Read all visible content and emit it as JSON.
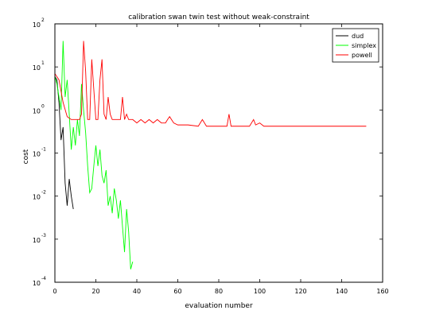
{
  "chart_data": {
    "type": "line",
    "title": "calibration swan twin test without weak-constraint",
    "xlabel": "evaluation number",
    "ylabel": "cost",
    "xlim": [
      0,
      160
    ],
    "ylim": [
      0.0001,
      100
    ],
    "yscale": "log",
    "grid": false,
    "legend_position": "top-right",
    "x_ticks": [
      0,
      20,
      40,
      60,
      80,
      100,
      120,
      140,
      160
    ],
    "x_tick_labels": [
      "0",
      "20",
      "40",
      "60",
      "80",
      "100",
      "120",
      "140",
      "160"
    ],
    "y_ticks": [
      {
        "value": 0.0001,
        "base": "10",
        "exp": "-4"
      },
      {
        "value": 0.001,
        "base": "10",
        "exp": "-3"
      },
      {
        "value": 0.01,
        "base": "10",
        "exp": "-2"
      },
      {
        "value": 0.1,
        "base": "10",
        "exp": "-1"
      },
      {
        "value": 1,
        "base": "10",
        "exp": "0"
      },
      {
        "value": 10,
        "base": "10",
        "exp": "1"
      },
      {
        "value": 100,
        "base": "10",
        "exp": "2"
      }
    ],
    "series": [
      {
        "name": "dud",
        "color": "#000000",
        "x": [
          0,
          1,
          2,
          3,
          4,
          5,
          6,
          7,
          8,
          9
        ],
        "y": [
          6,
          5,
          1.5,
          0.2,
          0.4,
          0.02,
          0.006,
          0.025,
          0.01,
          0.005
        ]
      },
      {
        "name": "simplex",
        "color": "#00ff00",
        "x": [
          0,
          1,
          2,
          3,
          4,
          5,
          6,
          7,
          8,
          9,
          10,
          11,
          12,
          13,
          14,
          15,
          16,
          17,
          18,
          19,
          20,
          21,
          22,
          23,
          24,
          25,
          26,
          27,
          28,
          29,
          30,
          31,
          32,
          33,
          34,
          35,
          36,
          37,
          38
        ],
        "y": [
          6,
          4,
          2,
          1,
          40,
          2,
          5,
          0.8,
          0.12,
          0.4,
          0.15,
          0.6,
          0.25,
          4,
          1,
          0.3,
          0.05,
          0.012,
          0.015,
          0.05,
          0.15,
          0.05,
          0.12,
          0.03,
          0.02,
          0.04,
          0.006,
          0.01,
          0.004,
          0.015,
          0.008,
          0.003,
          0.008,
          0.002,
          0.0005,
          0.005,
          0.0015,
          0.0002,
          0.0003
        ]
      },
      {
        "name": "powell",
        "color": "#ff0000",
        "x": [
          0,
          2,
          4,
          6,
          8,
          10,
          12,
          13,
          14,
          15,
          16,
          17,
          18,
          19,
          20,
          21,
          22,
          23,
          24,
          25,
          26,
          27,
          28,
          29,
          30,
          31,
          32,
          33,
          34,
          35,
          36,
          38,
          40,
          42,
          44,
          46,
          48,
          50,
          52,
          54,
          55,
          56,
          58,
          60,
          65,
          70,
          72,
          74,
          80,
          84,
          85,
          86,
          90,
          95,
          97,
          98,
          100,
          102,
          110,
          120,
          130,
          140,
          152
        ],
        "y": [
          7,
          5,
          1.5,
          0.7,
          0.6,
          0.6,
          0.6,
          0.8,
          40,
          8,
          0.6,
          0.6,
          15,
          3,
          0.6,
          0.6,
          5,
          15,
          0.8,
          0.6,
          2,
          0.8,
          0.6,
          0.6,
          0.6,
          0.6,
          0.6,
          2,
          0.6,
          0.8,
          0.6,
          0.6,
          0.5,
          0.6,
          0.5,
          0.6,
          0.5,
          0.6,
          0.5,
          0.5,
          0.6,
          0.7,
          0.5,
          0.45,
          0.45,
          0.42,
          0.6,
          0.42,
          0.42,
          0.42,
          0.8,
          0.42,
          0.42,
          0.42,
          0.6,
          0.45,
          0.5,
          0.42,
          0.42,
          0.42,
          0.42,
          0.42,
          0.42
        ]
      }
    ]
  }
}
